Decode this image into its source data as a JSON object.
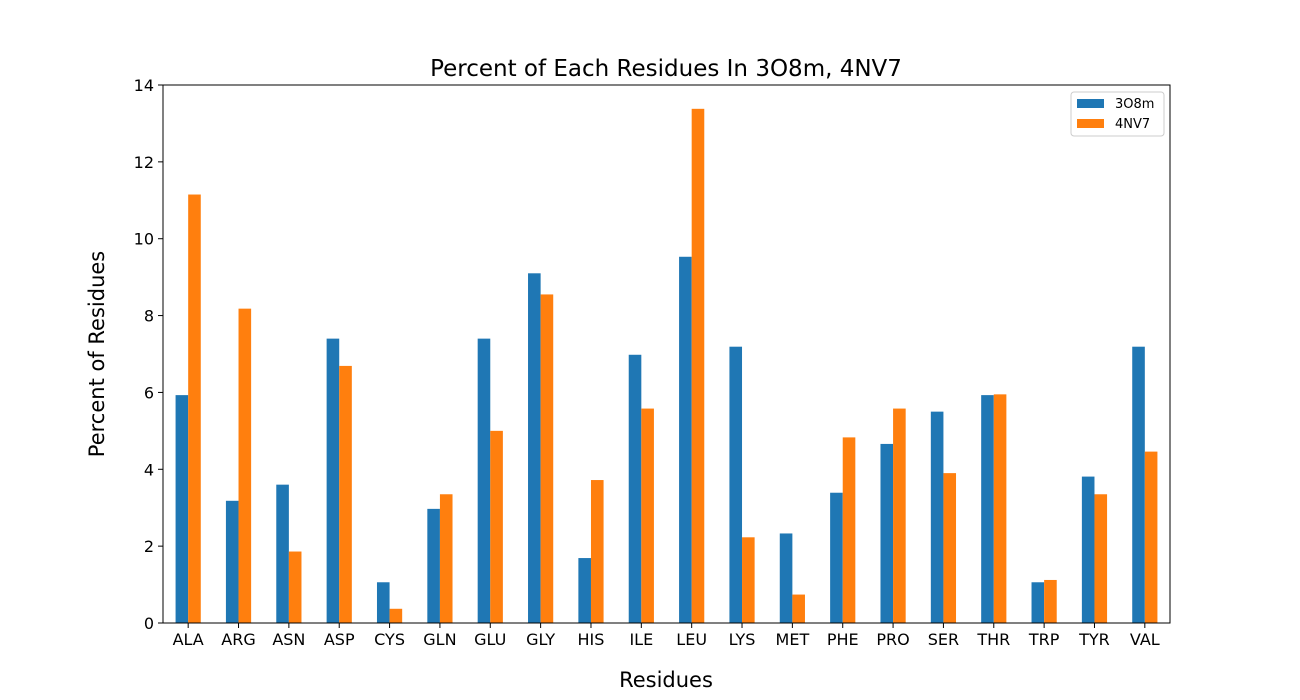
{
  "chart_data": {
    "type": "bar",
    "title": "Percent of Each Residues In 3O8m, 4NV7",
    "xlabel": "Residues",
    "ylabel": "Percent of Residues",
    "ylim": [
      0,
      14
    ],
    "yticks": [
      0,
      2,
      4,
      6,
      8,
      10,
      12,
      14
    ],
    "legend_position": "top-right",
    "grid": false,
    "categories": [
      "ALA",
      "ARG",
      "ASN",
      "ASP",
      "CYS",
      "GLN",
      "GLU",
      "GLY",
      "HIS",
      "ILE",
      "LEU",
      "LYS",
      "MET",
      "PHE",
      "PRO",
      "SER",
      "THR",
      "TRP",
      "TYR",
      "VAL"
    ],
    "series": [
      {
        "name": "3O8m",
        "color": "#1f77b4",
        "values": [
          5.93,
          3.18,
          3.6,
          7.4,
          1.06,
          2.97,
          7.4,
          9.1,
          1.69,
          6.98,
          9.53,
          7.19,
          2.33,
          3.39,
          4.66,
          5.5,
          5.93,
          1.06,
          3.81,
          7.19
        ]
      },
      {
        "name": "4NV7",
        "color": "#ff7f0e",
        "values": [
          11.15,
          8.18,
          1.86,
          6.69,
          0.37,
          3.35,
          5.0,
          8.55,
          3.72,
          5.58,
          13.38,
          2.23,
          0.74,
          4.83,
          5.58,
          3.9,
          5.95,
          1.12,
          3.35,
          4.46
        ]
      }
    ]
  }
}
